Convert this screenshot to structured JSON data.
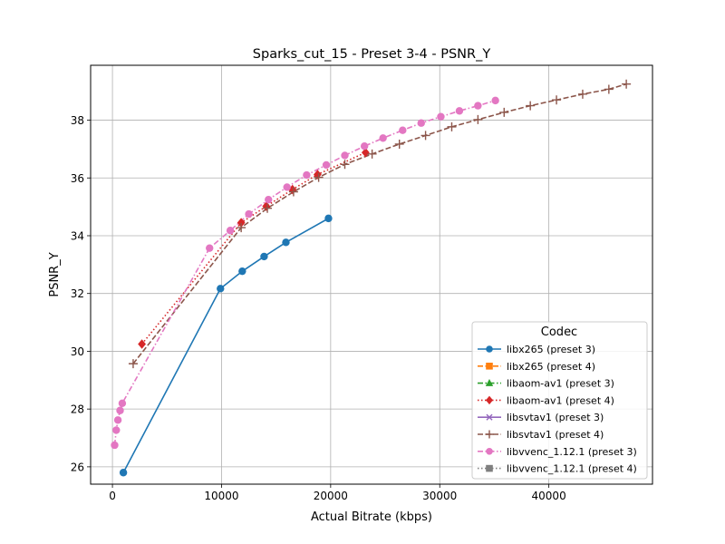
{
  "chart_data": {
    "type": "line",
    "title": "Sparks_cut_15 - Preset 3-4 - PSNR_Y",
    "xlabel": "Actual Bitrate (kbps)",
    "ylabel": "PSNR_Y",
    "xlim": [
      -2000,
      49500
    ],
    "ylim": [
      25.4,
      39.9
    ],
    "xticks": [
      0,
      10000,
      20000,
      30000,
      40000
    ],
    "yticks": [
      26,
      28,
      30,
      32,
      34,
      36,
      38
    ],
    "grid": true,
    "legend": {
      "title": "Codec",
      "position": "lower right"
    },
    "series": [
      {
        "name": "libx265 (preset 3)",
        "color": "#1f77b4",
        "marker": "circle",
        "linestyle": "solid",
        "x": [
          1000,
          9900,
          11900,
          13900,
          15900,
          19800
        ],
        "y": [
          25.8,
          32.17,
          32.77,
          33.28,
          33.77,
          34.6
        ]
      },
      {
        "name": "libx265 (preset 4)",
        "color": "#ff7f0e",
        "marker": "square",
        "linestyle": "dashed",
        "x": [],
        "y": []
      },
      {
        "name": "libaom-av1 (preset 3)",
        "color": "#2ca02c",
        "marker": "triangle",
        "linestyle": "dashdot",
        "x": [],
        "y": []
      },
      {
        "name": "libaom-av1 (preset 4)",
        "color": "#d62728",
        "marker": "diamond",
        "linestyle": "dotted",
        "x": [
          2700,
          11800,
          14100,
          16500,
          18800,
          23200
        ],
        "y": [
          30.25,
          34.45,
          35.02,
          35.6,
          36.12,
          36.88
        ]
      },
      {
        "name": "libsvtav1 (preset 3)",
        "color": "#9467bd",
        "marker": "x",
        "linestyle": "solid",
        "x": [],
        "y": []
      },
      {
        "name": "libsvtav1 (preset 4)",
        "color": "#8c564b",
        "marker": "plus",
        "linestyle": "dashed",
        "x": [
          1900,
          11800,
          14200,
          16600,
          18900,
          21300,
          23800,
          26300,
          28700,
          31100,
          33500,
          35900,
          38300,
          40700,
          43100,
          45500,
          47100
        ],
        "y": [
          29.57,
          34.28,
          34.95,
          35.52,
          36.02,
          36.47,
          36.83,
          37.17,
          37.47,
          37.77,
          38.02,
          38.27,
          38.5,
          38.7,
          38.9,
          39.07,
          39.25
        ]
      },
      {
        "name": "libvvenc_1.12.1 (preset 3)",
        "color": "#e377c2",
        "marker": "circle",
        "linestyle": "dashdot",
        "x": [
          200,
          350,
          500,
          700,
          900,
          8900,
          10800,
          12500,
          14300,
          16000,
          17800,
          19600,
          21300,
          23100,
          24800,
          26600,
          28300,
          30100,
          31800,
          33500,
          35100
        ],
        "y": [
          26.75,
          27.27,
          27.62,
          27.95,
          28.2,
          33.57,
          34.18,
          34.75,
          35.25,
          35.68,
          36.1,
          36.45,
          36.78,
          37.1,
          37.38,
          37.65,
          37.9,
          38.12,
          38.32,
          38.5,
          38.68
        ]
      },
      {
        "name": "libvvenc_1.12.1 (preset 4)",
        "color": "#7f7f7f",
        "marker": "square",
        "linestyle": "dotted",
        "x": [],
        "y": []
      }
    ]
  }
}
